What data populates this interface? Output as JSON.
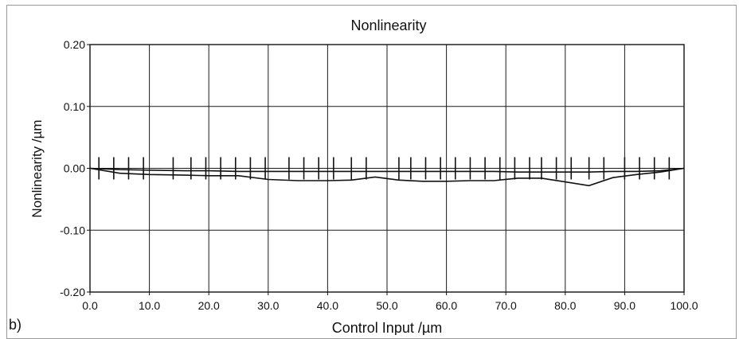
{
  "panel_label": "b)",
  "chart_data": {
    "type": "line",
    "title": "Nonlinearity",
    "xlabel": "Control Input /µm",
    "ylabel": "Nonlinearity /µm",
    "xlim": [
      0,
      100
    ],
    "ylim": [
      -0.2,
      0.2
    ],
    "grid": true,
    "x_ticks": [
      0,
      10,
      20,
      30,
      40,
      50,
      60,
      70,
      80,
      90,
      100
    ],
    "x_tick_labels": [
      "0.0",
      "10.0",
      "20.0",
      "30.0",
      "40.0",
      "50.0",
      "60.0",
      "70.0",
      "80.0",
      "90.0",
      "100.0"
    ],
    "y_ticks": [
      0.2,
      0.1,
      0.0,
      -0.1,
      -0.2
    ],
    "y_tick_labels": [
      "0.20",
      "0.10",
      "0.00",
      "-0.10",
      "-0.20"
    ],
    "series": [
      {
        "x": [
          0,
          5,
          10,
          16,
          20,
          25,
          30,
          35,
          40,
          44,
          48,
          52,
          56,
          60,
          64,
          68,
          72,
          76,
          80,
          84,
          88,
          92,
          96,
          100
        ],
        "values": [
          0,
          -0.008,
          -0.01,
          -0.011,
          -0.012,
          -0.012,
          -0.018,
          -0.02,
          -0.02,
          -0.019,
          -0.014,
          -0.019,
          -0.021,
          -0.021,
          -0.02,
          -0.02,
          -0.016,
          -0.016,
          -0.022,
          -0.028,
          -0.015,
          -0.01,
          -0.006,
          0
        ]
      },
      {
        "x": [
          0,
          5,
          10,
          16,
          20,
          25,
          30,
          35,
          40,
          44,
          48,
          52,
          56,
          60,
          64,
          68,
          72,
          76,
          80,
          84,
          88,
          92,
          96,
          100
        ],
        "values": [
          0,
          -0.002,
          -0.003,
          -0.004,
          -0.004,
          -0.005,
          -0.005,
          -0.005,
          -0.005,
          -0.005,
          -0.005,
          -0.005,
          -0.005,
          -0.005,
          -0.005,
          -0.005,
          -0.006,
          -0.006,
          -0.006,
          -0.006,
          -0.005,
          -0.005,
          -0.004,
          0
        ]
      }
    ],
    "error_bars": {
      "x": [
        1.5,
        4,
        6.5,
        9,
        14,
        17,
        19.5,
        22,
        24.5,
        27,
        29.5,
        33.5,
        36,
        38.5,
        41,
        44,
        46.5,
        52,
        54,
        56.5,
        59,
        61.5,
        64,
        66.5,
        69,
        71.5,
        74,
        76,
        78.5,
        81,
        84,
        86.5,
        90,
        92.5,
        95,
        97.5
      ],
      "upper": 0.018,
      "lower": -0.018
    }
  }
}
